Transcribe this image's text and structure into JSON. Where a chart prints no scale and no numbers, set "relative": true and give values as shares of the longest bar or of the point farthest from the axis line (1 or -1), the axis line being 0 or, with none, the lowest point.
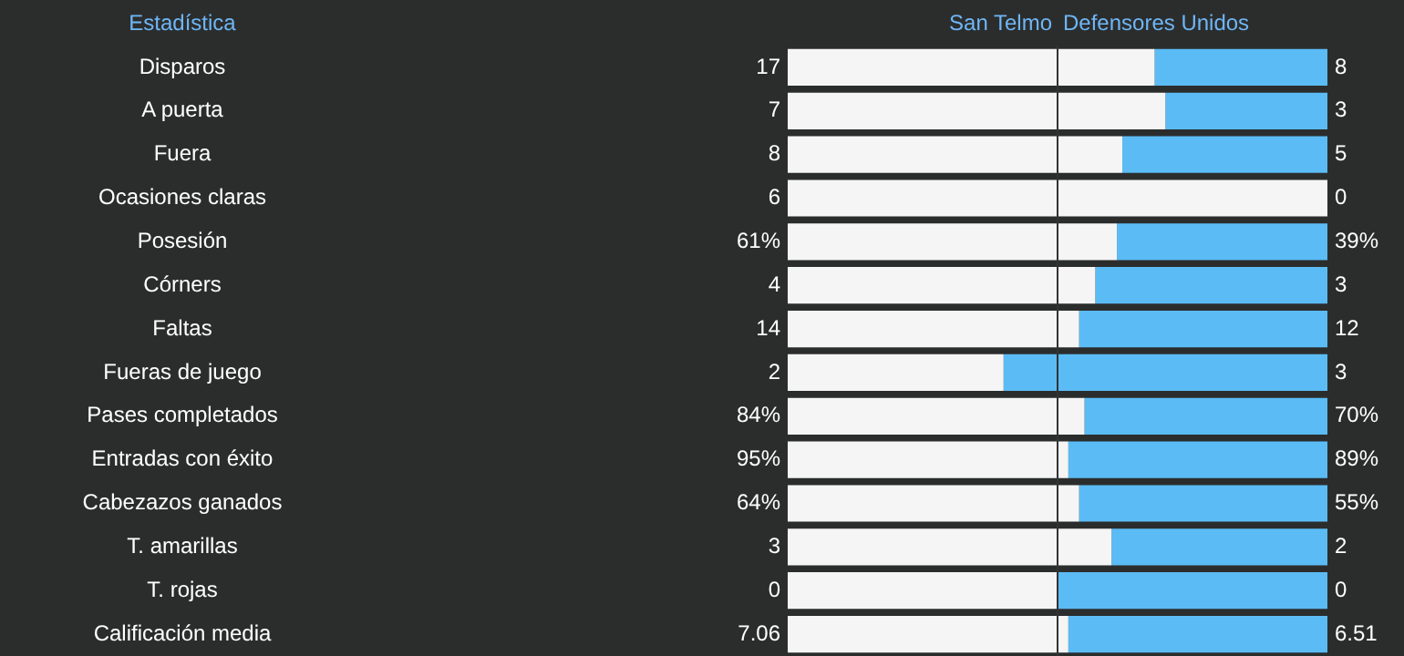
{
  "chart_data": {
    "type": "bar",
    "orientation": "horizontal",
    "stacked": true,
    "relative": true,
    "title": "Estadística",
    "legend": "top",
    "categories": [
      "Disparos",
      "A puerta",
      "Fuera",
      "Ocasiones claras",
      "Posesión",
      "Córners",
      "Faltas",
      "Fueras de juego",
      "Pases completados",
      "Entradas con éxito",
      "Cabezazos ganados",
      "T. amarillas",
      "T. rojas",
      "Calificación media"
    ],
    "series": [
      {
        "name": "San Telmo",
        "color": "#f5f5f5",
        "values": [
          0.68,
          0.7,
          0.62,
          1,
          0.61,
          0.57,
          0.54,
          0.4,
          0.55,
          0.52,
          0.54,
          0.6,
          0.5,
          0.52
        ]
      },
      {
        "name": "Defensores Unidos",
        "color": "#5bbcf5",
        "values": [
          0.32,
          0.3,
          0.38,
          0,
          0.39,
          0.43,
          0.46,
          0.6,
          0.45,
          0.48,
          0.46,
          0.4,
          0.5,
          0.48
        ]
      }
    ],
    "ref_lines": [
      {
        "axis": "x",
        "value": 0.5,
        "color": "#333333"
      }
    ],
    "annotations": [
      "17",
      "8",
      "7",
      "3",
      "8",
      "5",
      "6",
      "0",
      "61%",
      "39%",
      "4",
      "3",
      "14",
      "12",
      "2",
      "3",
      "84%",
      "70%",
      "95%",
      "89%",
      "64%",
      "55%",
      "3",
      "2",
      "0",
      "0",
      "7.06",
      "6.51"
    ]
  }
}
